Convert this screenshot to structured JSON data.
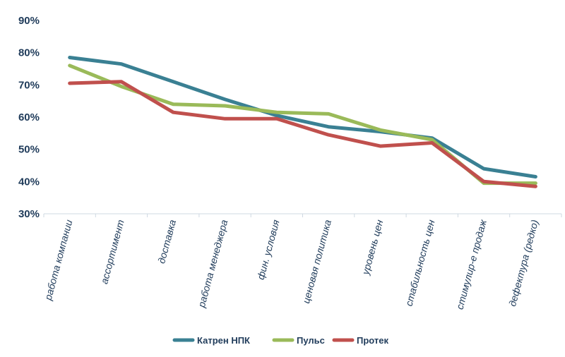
{
  "chart_data": {
    "type": "line",
    "title": "",
    "xlabel": "",
    "ylabel": "",
    "ylim": [
      30,
      90
    ],
    "yticks": [
      30,
      40,
      50,
      60,
      70,
      80,
      90
    ],
    "ytick_labels": [
      "30%",
      "40%",
      "50%",
      "60%",
      "70%",
      "80%",
      "90%"
    ],
    "grid": false,
    "legend_position": "bottom",
    "categories": [
      "работа компании",
      "ассортимент",
      "доставка",
      "работа менеджера",
      "фин. условия",
      "ценовая политика",
      "уровень цен",
      "стабильность цен",
      "стимулир-е продаж",
      "дефектура (редко)"
    ],
    "series": [
      {
        "name": "Катрен НПК",
        "color": "#3a8093",
        "values": [
          78.5,
          76.5,
          71,
          65.5,
          60.5,
          57,
          55.5,
          53.5,
          44,
          41.5
        ]
      },
      {
        "name": "Пульс",
        "color": "#9aba59",
        "values": [
          76,
          69.5,
          64,
          63.5,
          61.5,
          61,
          56,
          53,
          39.5,
          39.5
        ]
      },
      {
        "name": "Протек",
        "color": "#c0504d",
        "values": [
          70.5,
          71,
          61.5,
          59.5,
          59.5,
          54.5,
          51,
          52,
          40,
          38.5
        ]
      }
    ]
  }
}
